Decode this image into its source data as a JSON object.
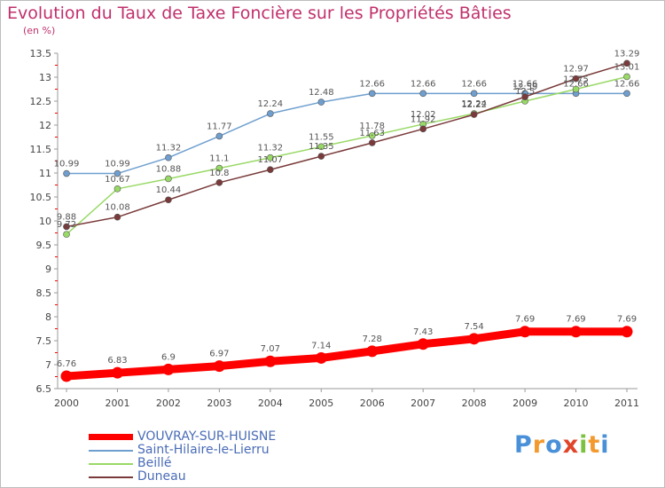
{
  "chart_data": {
    "type": "line",
    "title": "Evolution du Taux de Taxe Foncière sur les Propriétés Bâties",
    "subtitle": "(en %)",
    "x": [
      "2000",
      "2001",
      "2002",
      "2003",
      "2004",
      "2005",
      "2006",
      "2007",
      "2008",
      "2009",
      "2010",
      "2011"
    ],
    "ylim": [
      6.5,
      13.5
    ],
    "yticks": [
      6.5,
      7,
      7.5,
      8,
      8.5,
      9,
      9.5,
      10,
      10.5,
      11,
      11.5,
      12,
      12.5,
      13,
      13.5
    ],
    "ytick_labels": [
      "6.5",
      "7",
      "7.5",
      "8",
      "8.5",
      "9",
      "9.5",
      "10",
      "10.5",
      "11",
      "11.5",
      "12",
      "12.5",
      "13",
      "13.5"
    ],
    "grid": false,
    "series": [
      {
        "name": "VOUVRAY-SUR-HUISNE",
        "color": "#ff0000",
        "values": [
          6.76,
          6.83,
          6.9,
          6.97,
          7.07,
          7.14,
          7.28,
          7.43,
          7.54,
          7.69,
          7.69,
          7.69
        ],
        "labels": [
          "6.76",
          "6.83",
          "6.9",
          "6.97",
          "7.07",
          "7.14",
          "7.28",
          "7.43",
          "7.54",
          "7.69",
          "7.69",
          "7.69"
        ]
      },
      {
        "name": "Saint-Hilaire-le-Lierru",
        "color": "#6f9fcf",
        "values": [
          10.99,
          10.99,
          11.32,
          11.77,
          12.24,
          12.48,
          12.66,
          12.66,
          12.66,
          12.66,
          12.66,
          12.66
        ],
        "labels": [
          "10.99",
          "10.99",
          "11.32",
          "11.77",
          "12.24",
          "12.48",
          "12.66",
          "12.66",
          "12.66",
          "12.66",
          "12.66",
          "12.66"
        ]
      },
      {
        "name": "Beillé",
        "color": "#99d966",
        "values": [
          9.72,
          10.67,
          10.88,
          11.1,
          11.32,
          11.55,
          11.78,
          12.02,
          12.24,
          12.5,
          12.75,
          13.01
        ],
        "labels": [
          "9.72",
          "10.67",
          "10.88",
          "11.1",
          "11.32",
          "11.55",
          "11.78",
          "12.02",
          "12.24",
          "12.5",
          "12.75",
          "13.01"
        ]
      },
      {
        "name": "Duneau",
        "color": "#7a3a3a",
        "values": [
          9.88,
          10.08,
          10.44,
          10.8,
          11.07,
          11.35,
          11.63,
          11.92,
          12.22,
          12.59,
          12.97,
          13.29
        ],
        "labels": [
          "9.88",
          "10.08",
          "10.44",
          "10.8",
          "11.07",
          "11.35",
          "11.63",
          "11.92",
          "12.22",
          "12.59",
          "12.97",
          "13.29"
        ]
      }
    ]
  },
  "legend": {
    "items": [
      {
        "label": "VOUVRAY-SUR-HUISNE",
        "color": "#ff0000"
      },
      {
        "label": "Saint-Hilaire-le-Lierru",
        "color": "#6f9fcf"
      },
      {
        "label": "Beillé",
        "color": "#99d966"
      },
      {
        "label": "Duneau",
        "color": "#7a3a3a"
      }
    ]
  },
  "logo": {
    "letters": [
      "P",
      "r",
      "o",
      "x",
      "i",
      "t",
      "i"
    ],
    "colors": [
      "#4a90d9",
      "#f29a2e",
      "#4a90d9",
      "#e0452a",
      "#7cc242",
      "#f29a2e",
      "#4a90d9"
    ]
  }
}
